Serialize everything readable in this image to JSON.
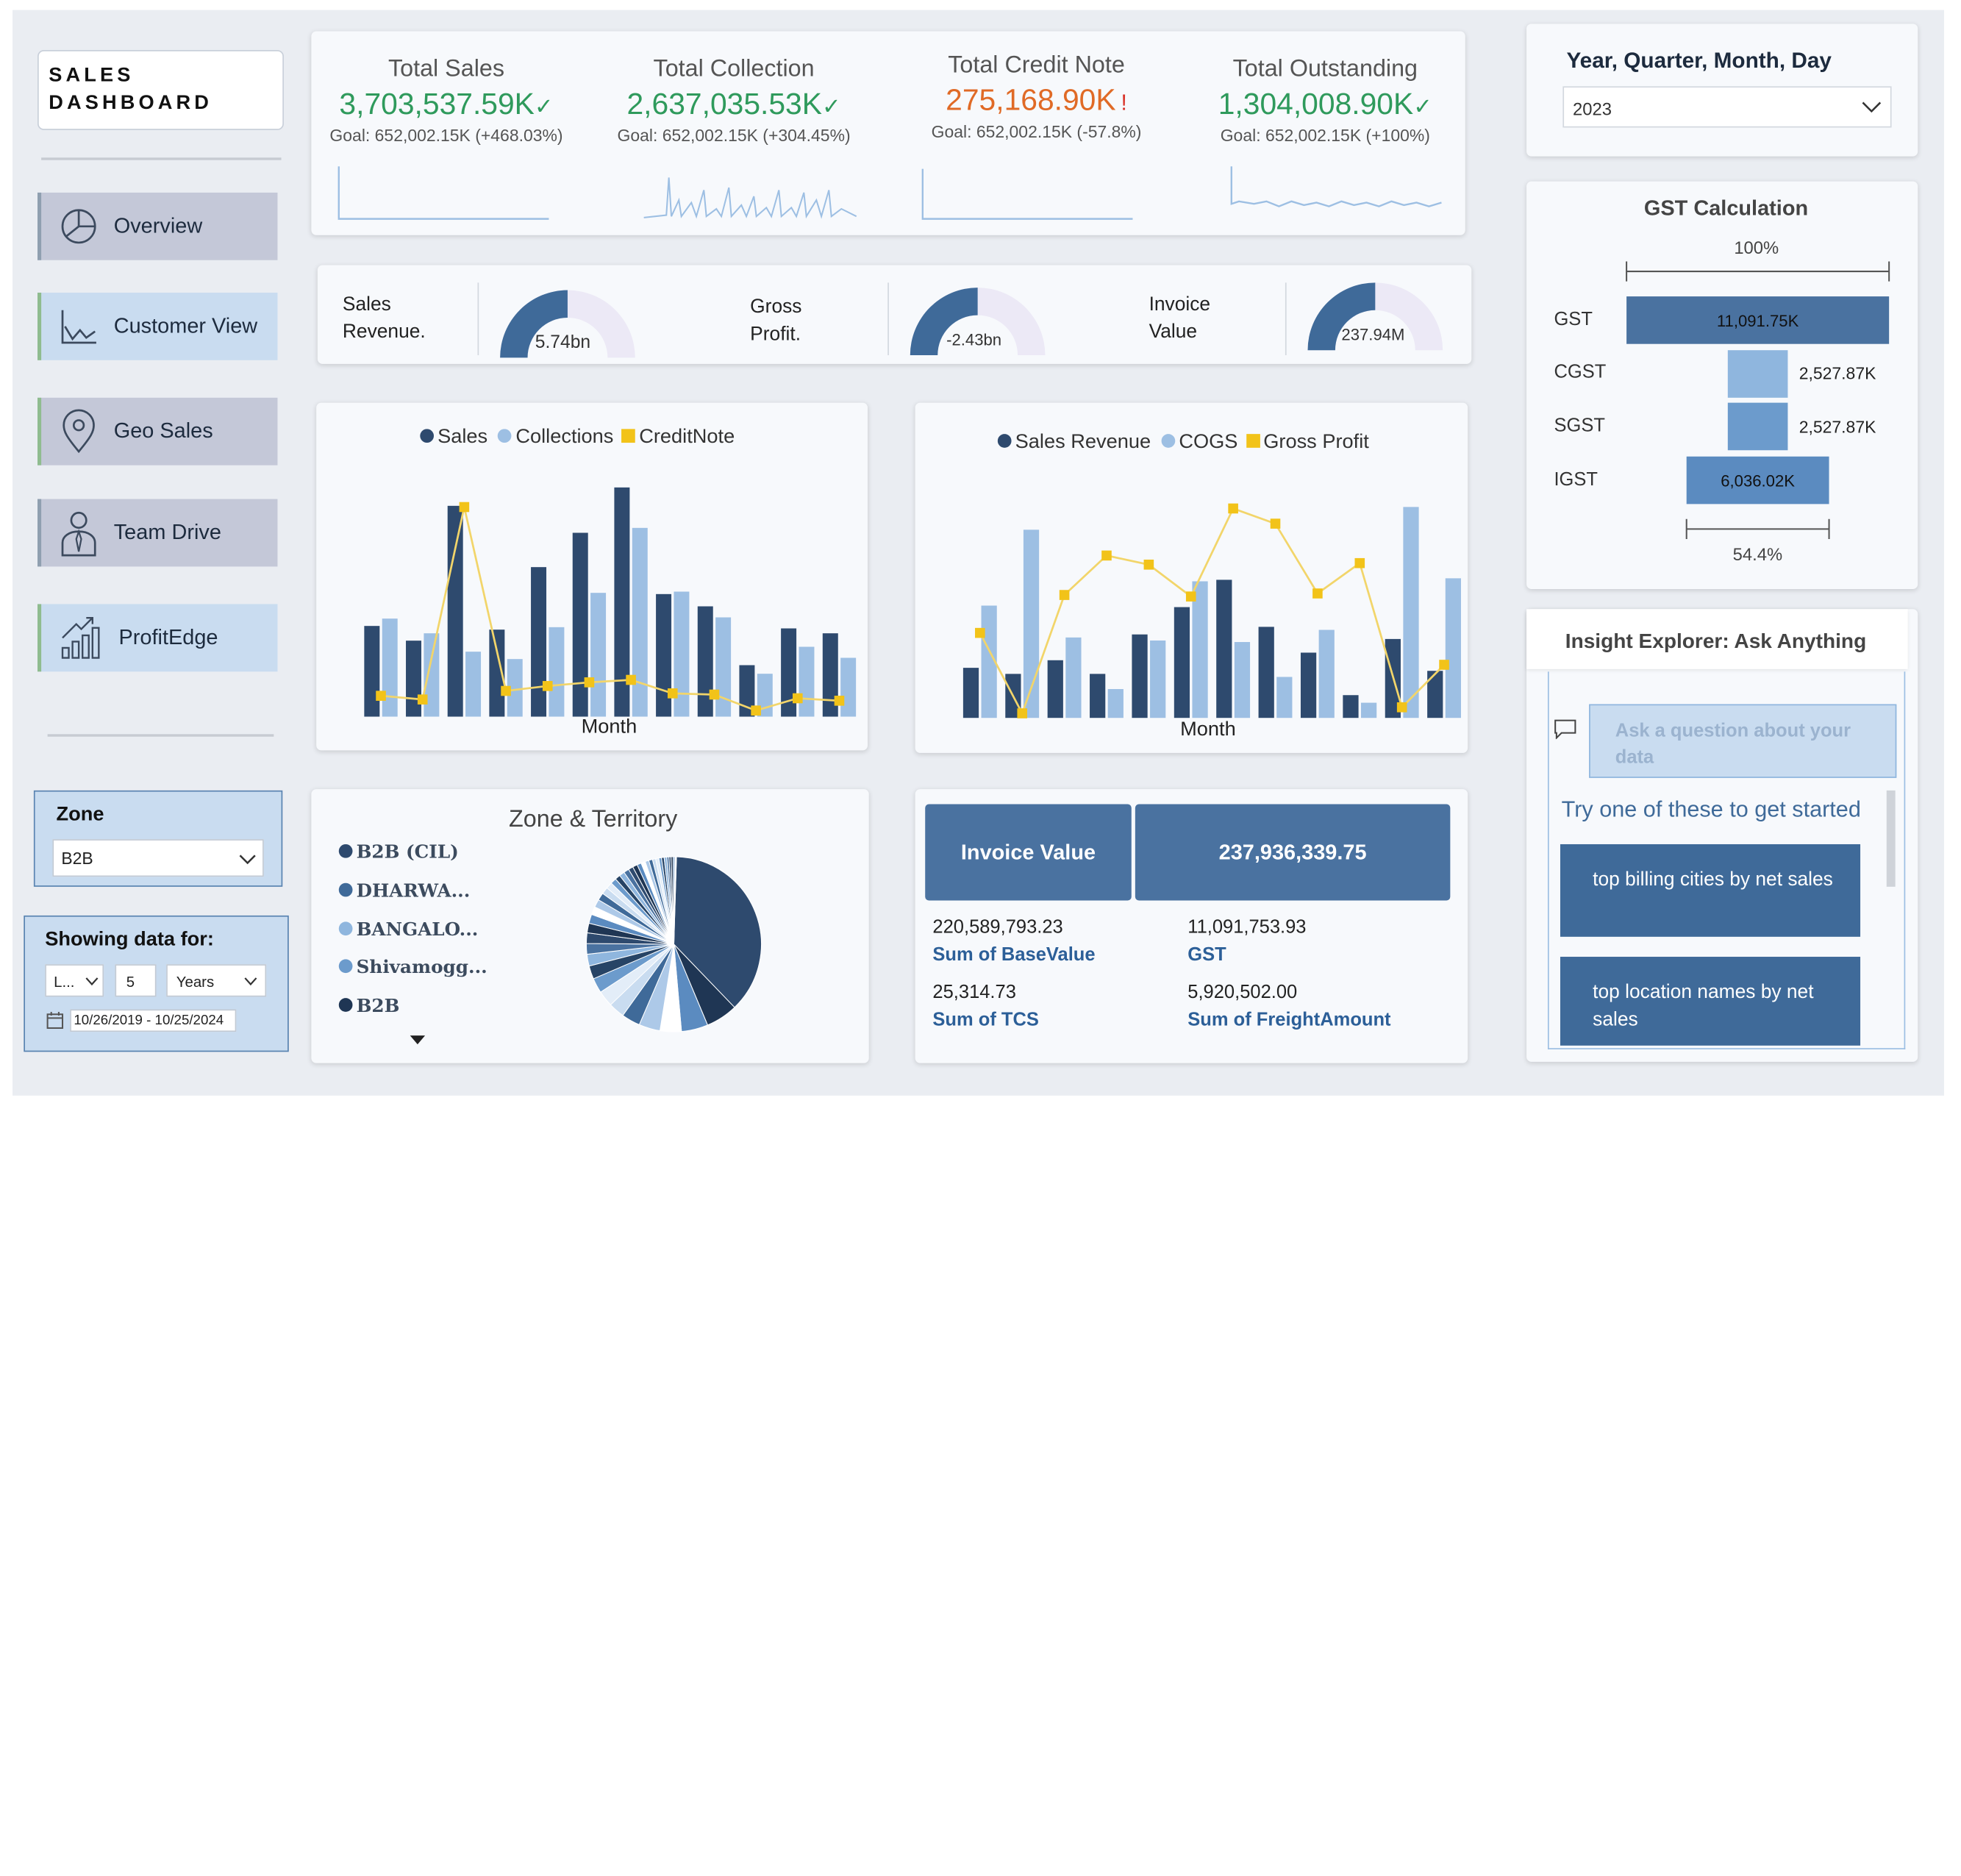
{
  "app": {
    "title_line1": "SALES",
    "title_line2": "DASHBOARD"
  },
  "nav": {
    "items": [
      {
        "label": "Overview",
        "icon": "pie-chart-icon"
      },
      {
        "label": "Customer View",
        "icon": "line-chart-icon"
      },
      {
        "label": "Geo Sales",
        "icon": "location-pin-icon"
      },
      {
        "label": "Team Drive",
        "icon": "person-icon"
      },
      {
        "label": "ProfitEdge",
        "icon": "growth-chart-icon"
      }
    ]
  },
  "filters": {
    "zone_label": "Zone",
    "zone_value": "B2B",
    "showing_label": "Showing data for:",
    "period_mode": "L...",
    "period_count": "5",
    "period_unit": "Years",
    "date_range": "10/26/2019 - 10/25/2024"
  },
  "kpis": [
    {
      "label": "Total Sales",
      "value": "3,703,537.59K",
      "mark": "✓",
      "goal": "Goal: 652,002.15K (+468.03%)",
      "color": "#2f9a5c"
    },
    {
      "label": "Total Collection",
      "value": "2,637,035.53K",
      "mark": "✓",
      "goal": "Goal: 652,002.15K (+304.45%)",
      "color": "#2f9a5c"
    },
    {
      "label": "Total Credit Note",
      "value": "275,168.90K",
      "mark": "!",
      "goal": "Goal: 652,002.15K (-57.8%)",
      "color": "#e06a26"
    },
    {
      "label": "Total Outstanding",
      "value": "1,304,008.90K",
      "mark": "✓",
      "goal": "Goal: 652,002.15K (+100%)",
      "color": "#2f9a5c"
    }
  ],
  "gauges": [
    {
      "label_line1": "Sales",
      "label_line2": "Revenue.",
      "value": "5.74bn",
      "fill": 0.5
    },
    {
      "label_line1": "Gross",
      "label_line2": "Profit.",
      "value": "-2.43bn",
      "fill": 0.5
    },
    {
      "label_line1": "Invoice",
      "label_line2": "Value",
      "value": "237.94M",
      "fill": 0.5
    }
  ],
  "chart_data": [
    {
      "type": "bar",
      "title": "",
      "xlabel": "Month",
      "legend": [
        {
          "name": "Sales",
          "color": "#2e4a6e",
          "marker": "circle"
        },
        {
          "name": "Collections",
          "color": "#9dbfe3",
          "marker": "circle"
        },
        {
          "name": "CreditNote",
          "color": "#f2c319",
          "marker": "square"
        }
      ],
      "series": [
        {
          "name": "Sales",
          "values": [
            74,
            62,
            172,
            71,
            122,
            150,
            187,
            100,
            90,
            42,
            72,
            68
          ]
        },
        {
          "name": "Collections",
          "values": [
            80,
            68,
            53,
            47,
            73,
            101,
            154,
            102,
            81,
            35,
            57,
            48
          ]
        },
        {
          "name": "CreditNote",
          "kind": "line",
          "values": [
            17,
            14,
            171,
            21,
            25,
            28,
            30,
            19,
            18,
            5,
            15,
            13
          ]
        }
      ],
      "ylim": [
        0,
        200
      ]
    },
    {
      "type": "bar",
      "title": "",
      "xlabel": "Month",
      "legend": [
        {
          "name": "Sales Revenue",
          "color": "#2e4a6e",
          "marker": "circle"
        },
        {
          "name": "COGS",
          "color": "#9dbfe3",
          "marker": "circle"
        },
        {
          "name": "Gross Profit",
          "color": "#f2c319",
          "marker": "square"
        }
      ],
      "series": [
        {
          "name": "Sales Revenue",
          "values": [
            33,
            29,
            38,
            29,
            55,
            73,
            91,
            60,
            43,
            15,
            52,
            31
          ]
        },
        {
          "name": "COGS",
          "values": [
            74,
            124,
            53,
            19,
            51,
            90,
            50,
            27,
            58,
            10,
            139,
            92
          ]
        },
        {
          "name": "Gross Profit",
          "kind": "line",
          "values": [
            56,
            3,
            81,
            107,
            101,
            80,
            138,
            128,
            82,
            102,
            7,
            35
          ]
        }
      ],
      "ylim": [
        0,
        150
      ]
    },
    {
      "type": "pie",
      "title": "Zone & Territory",
      "legend": [
        "B2B (CIL)",
        "DHARWA...",
        "BANGALO...",
        "Shivamogg...",
        "B2B"
      ],
      "values": [
        38,
        6,
        5,
        4,
        4,
        3.5,
        3,
        3,
        2.8,
        2.5,
        2.2,
        2,
        2,
        1.8,
        1.7,
        1.5,
        1.5,
        1.4,
        1.3,
        1.2,
        1.1,
        1,
        1,
        1,
        0.9,
        0.9,
        0.8,
        0.8,
        0.7,
        0.7,
        0.6,
        0.6,
        0.5,
        0.5,
        0.5,
        0.4,
        0.4,
        0.4,
        0.3,
        0.3
      ]
    },
    {
      "type": "bar",
      "title": "GST Calculation",
      "orientation": "waterfall",
      "categories": [
        "GST",
        "CGST",
        "SGST",
        "IGST"
      ],
      "values": [
        11091.75,
        2527.87,
        2527.87,
        6036.02
      ],
      "value_labels": [
        "11,091.75K",
        "2,527.87K",
        "2,527.87K",
        "6,036.02K"
      ],
      "top_annotation": "100%",
      "bottom_annotation": "54.4%"
    }
  ],
  "zone_title": "Zone & Territory",
  "zone_legend": [
    {
      "label": "B2B (CIL)",
      "color": "#2e4a6e"
    },
    {
      "label": "DHARWA...",
      "color": "#3f6a99"
    },
    {
      "label": "BANGALO...",
      "color": "#8fb6de"
    },
    {
      "label": "Shivamogg...",
      "color": "#6c9bcc"
    },
    {
      "label": "B2B",
      "color": "#1f3654"
    }
  ],
  "invoice": {
    "header_label": "Invoice Value",
    "header_value": "237,936,339.75",
    "base_value": "220,589,793.23",
    "base_label": "Sum of BaseValue",
    "gst_value": "11,091,753.93",
    "gst_label": "GST",
    "tcs_value": "25,314.73",
    "tcs_label": "Sum of TCS",
    "freight_value": "5,920,502.00",
    "freight_label": "Sum of FreightAmount"
  },
  "period": {
    "title": "Year, Quarter, Month, Day",
    "value": "2023"
  },
  "gst": {
    "title": "GST Calculation",
    "top_pct": "100%",
    "bottom_pct": "54.4%",
    "rows": [
      {
        "label": "GST",
        "value": "11,091.75K"
      },
      {
        "label": "CGST",
        "value": "2,527.87K"
      },
      {
        "label": "SGST",
        "value": "2,527.87K"
      },
      {
        "label": "IGST",
        "value": "6,036.02K"
      }
    ]
  },
  "insight": {
    "title": "Insight Explorer: Ask Anything",
    "placeholder": "Ask a question about your data",
    "prompt": "Try one of these to get started",
    "suggestions": [
      "top billing cities by net sales",
      "top location names by net sales"
    ]
  },
  "colors": {
    "dark": "#2e4a6e",
    "light": "#9dbfe3",
    "yellow": "#f2c319",
    "accent": "#3f6a99",
    "nav": "#c4c8d8",
    "nav_light": "#c9dcf0"
  }
}
